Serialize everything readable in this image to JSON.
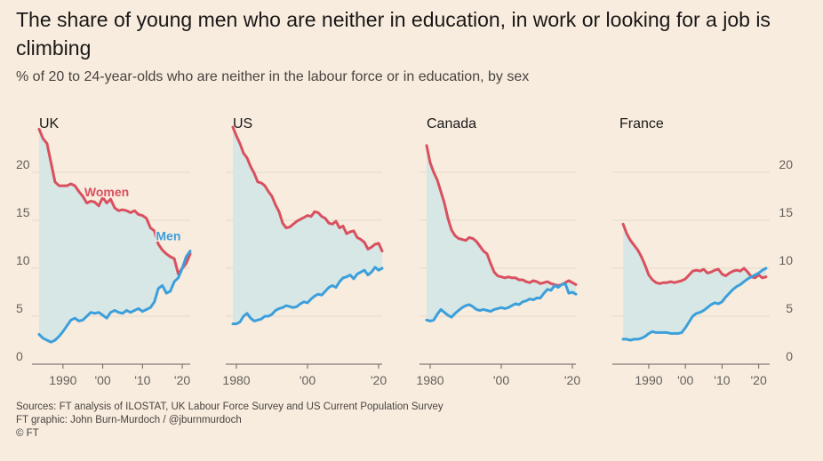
{
  "title": "The share of young men who are neither in education, in work or looking for a job is climbing",
  "subtitle": "% of 20 to 24-year-olds who are neither in the labour force or in education, by sex",
  "footer": {
    "sources": "Sources: FT analysis of ILOSTAT, UK Labour Force Survey and US Current Population Survey",
    "graphic": "FT graphic: John Burn-Murdoch / @jburnmurdoch",
    "copyright": "© FT"
  },
  "colors": {
    "background": "#f7ecde",
    "women": "#d9505e",
    "men": "#3c9fdb",
    "fill": "#d7e7e6",
    "grid": "#e3d7c8",
    "axis": "#66605a"
  },
  "chart_data": [
    {
      "type": "line",
      "title": "UK",
      "xlim": [
        1984,
        2022
      ],
      "ylim": [
        0,
        25
      ],
      "yticks": [
        0,
        5,
        10,
        15,
        20
      ],
      "ytick_labels": [
        "0",
        "5",
        "10",
        "15",
        "20"
      ],
      "ytick_side": "left",
      "xticks": [
        1990,
        2000,
        2010,
        2020
      ],
      "xtick_labels": [
        "1990",
        "'00",
        "'10",
        "'20"
      ],
      "labels": [
        {
          "text": "Women",
          "series": "Women",
          "x": 2001,
          "y": 17.5
        },
        {
          "text": "Men",
          "series": "Men",
          "x": 2016.5,
          "y": 12.9
        }
      ],
      "series": [
        {
          "name": "Women",
          "x": [
            1984,
            1985,
            1986,
            1987,
            1988,
            1989,
            1990,
            1991,
            1992,
            1993,
            1994,
            1995,
            1996,
            1997,
            1998,
            1999,
            2000,
            2001,
            2002,
            2003,
            2004,
            2005,
            2006,
            2007,
            2008,
            2009,
            2010,
            2011,
            2012,
            2013,
            2014,
            2015,
            2016,
            2017,
            2018,
            2019,
            2020,
            2021,
            2022
          ],
          "y": [
            24.5,
            23.5,
            23.0,
            21.0,
            19.0,
            18.6,
            18.6,
            18.6,
            18.8,
            18.6,
            18.0,
            17.5,
            16.8,
            17.0,
            16.9,
            16.5,
            17.4,
            16.8,
            17.2,
            16.3,
            16.0,
            16.1,
            16.0,
            15.8,
            16.0,
            15.6,
            15.5,
            15.2,
            14.2,
            13.9,
            12.5,
            11.9,
            11.5,
            11.2,
            11.0,
            9.4,
            10.0,
            10.5,
            11.5
          ]
        },
        {
          "name": "Men",
          "x": [
            1984,
            1985,
            1986,
            1987,
            1988,
            1989,
            1990,
            1991,
            1992,
            1993,
            1994,
            1995,
            1996,
            1997,
            1998,
            1999,
            2000,
            2001,
            2002,
            2003,
            2004,
            2005,
            2006,
            2007,
            2008,
            2009,
            2010,
            2011,
            2012,
            2013,
            2014,
            2015,
            2016,
            2017,
            2018,
            2019,
            2020,
            2021,
            2022
          ],
          "y": [
            3.1,
            2.7,
            2.5,
            2.3,
            2.5,
            2.9,
            3.4,
            4.0,
            4.6,
            4.8,
            4.5,
            4.6,
            5.0,
            5.4,
            5.3,
            5.4,
            5.1,
            4.8,
            5.4,
            5.6,
            5.4,
            5.3,
            5.6,
            5.4,
            5.6,
            5.8,
            5.5,
            5.7,
            5.9,
            6.5,
            7.9,
            8.2,
            7.4,
            7.6,
            8.6,
            9.0,
            10.0,
            11.2,
            11.8
          ]
        }
      ]
    },
    {
      "type": "line",
      "title": "US",
      "xlim": [
        1979,
        2021
      ],
      "ylim": [
        0,
        25
      ],
      "yticks": [
        0,
        5,
        10,
        15,
        20
      ],
      "ytick_labels": [],
      "ytick_side": "none",
      "xticks": [
        1980,
        2000,
        2020
      ],
      "xtick_labels": [
        "1980",
        "'00",
        "'20"
      ],
      "labels": [],
      "series": [
        {
          "name": "Women",
          "x": [
            1979,
            1980,
            1981,
            1982,
            1983,
            1984,
            1985,
            1986,
            1987,
            1988,
            1989,
            1990,
            1991,
            1992,
            1993,
            1994,
            1995,
            1996,
            1997,
            1998,
            1999,
            2000,
            2001,
            2002,
            2003,
            2004,
            2005,
            2006,
            2007,
            2008,
            2009,
            2010,
            2011,
            2012,
            2013,
            2014,
            2015,
            2016,
            2017,
            2018,
            2019,
            2020,
            2021
          ],
          "y": [
            24.7,
            23.8,
            23.0,
            22.0,
            21.5,
            20.6,
            19.9,
            19.0,
            18.9,
            18.6,
            18.0,
            17.5,
            16.6,
            15.9,
            14.7,
            14.2,
            14.3,
            14.6,
            14.9,
            15.1,
            15.3,
            15.5,
            15.4,
            15.9,
            15.8,
            15.4,
            15.2,
            14.7,
            14.6,
            14.9,
            14.2,
            14.4,
            13.6,
            13.8,
            13.9,
            13.2,
            13.0,
            12.7,
            12.0,
            12.2,
            12.5,
            12.6,
            11.8
          ]
        },
        {
          "name": "Men",
          "x": [
            1979,
            1980,
            1981,
            1982,
            1983,
            1984,
            1985,
            1986,
            1987,
            1988,
            1989,
            1990,
            1991,
            1992,
            1993,
            1994,
            1995,
            1996,
            1997,
            1998,
            1999,
            2000,
            2001,
            2002,
            2003,
            2004,
            2005,
            2006,
            2007,
            2008,
            2009,
            2010,
            2011,
            2012,
            2013,
            2014,
            2015,
            2016,
            2017,
            2018,
            2019,
            2020,
            2021
          ],
          "y": [
            4.2,
            4.2,
            4.4,
            5.0,
            5.3,
            4.8,
            4.5,
            4.6,
            4.7,
            5.0,
            5.0,
            5.2,
            5.6,
            5.8,
            5.9,
            6.1,
            6.0,
            5.9,
            6.0,
            6.3,
            6.5,
            6.4,
            6.8,
            7.1,
            7.3,
            7.2,
            7.6,
            8.0,
            8.2,
            8.0,
            8.6,
            9.0,
            9.1,
            9.3,
            8.9,
            9.4,
            9.6,
            9.8,
            9.3,
            9.6,
            10.1,
            9.8,
            10.0
          ]
        }
      ]
    },
    {
      "type": "line",
      "title": "Canada",
      "xlim": [
        1979,
        2021
      ],
      "ylim": [
        0,
        25
      ],
      "yticks": [
        0,
        5,
        10,
        15,
        20
      ],
      "ytick_labels": [],
      "ytick_side": "none",
      "xticks": [
        1980,
        2000,
        2020
      ],
      "xtick_labels": [
        "1980",
        "'00",
        "'20"
      ],
      "labels": [],
      "series": [
        {
          "name": "Women",
          "x": [
            1979,
            1980,
            1981,
            1982,
            1983,
            1984,
            1985,
            1986,
            1987,
            1988,
            1989,
            1990,
            1991,
            1992,
            1993,
            1994,
            1995,
            1996,
            1997,
            1998,
            1999,
            2000,
            2001,
            2002,
            2003,
            2004,
            2005,
            2006,
            2007,
            2008,
            2009,
            2010,
            2011,
            2012,
            2013,
            2014,
            2015,
            2016,
            2017,
            2018,
            2019,
            2020,
            2021
          ],
          "y": [
            22.8,
            21.0,
            20.0,
            19.2,
            18.0,
            16.8,
            15.2,
            14.0,
            13.4,
            13.1,
            13.0,
            12.9,
            13.2,
            13.1,
            12.8,
            12.3,
            11.8,
            11.5,
            10.5,
            9.6,
            9.2,
            9.1,
            9.0,
            9.1,
            9.0,
            9.0,
            8.8,
            8.8,
            8.6,
            8.5,
            8.7,
            8.6,
            8.4,
            8.5,
            8.6,
            8.4,
            8.3,
            8.2,
            8.3,
            8.5,
            8.7,
            8.5,
            8.3
          ]
        },
        {
          "name": "Men",
          "x": [
            1979,
            1980,
            1981,
            1982,
            1983,
            1984,
            1985,
            1986,
            1987,
            1988,
            1989,
            1990,
            1991,
            1992,
            1993,
            1994,
            1995,
            1996,
            1997,
            1998,
            1999,
            2000,
            2001,
            2002,
            2003,
            2004,
            2005,
            2006,
            2007,
            2008,
            2009,
            2010,
            2011,
            2012,
            2013,
            2014,
            2015,
            2016,
            2017,
            2018,
            2019,
            2020,
            2021
          ],
          "y": [
            4.6,
            4.5,
            4.6,
            5.2,
            5.7,
            5.4,
            5.1,
            4.9,
            5.3,
            5.6,
            5.9,
            6.1,
            6.2,
            6.0,
            5.7,
            5.6,
            5.7,
            5.6,
            5.5,
            5.7,
            5.8,
            5.9,
            5.8,
            5.9,
            6.1,
            6.3,
            6.2,
            6.5,
            6.6,
            6.8,
            6.7,
            6.9,
            6.9,
            7.4,
            7.8,
            7.7,
            8.2,
            8.0,
            8.3,
            8.4,
            7.4,
            7.5,
            7.3
          ]
        }
      ]
    },
    {
      "type": "line",
      "title": "France",
      "xlim": [
        1982,
        2023
      ],
      "ylim": [
        0,
        25
      ],
      "yticks": [
        0,
        5,
        10,
        15,
        20
      ],
      "ytick_labels": [
        "0",
        "5",
        "10",
        "15",
        "20"
      ],
      "ytick_side": "right",
      "xticks": [
        1990,
        2000,
        2010,
        2020
      ],
      "xtick_labels": [
        "1990",
        "'00",
        "'10",
        "'20"
      ],
      "labels": [],
      "series": [
        {
          "name": "Women",
          "x": [
            1983,
            1984,
            1985,
            1986,
            1987,
            1988,
            1989,
            1990,
            1991,
            1992,
            1993,
            1994,
            1995,
            1996,
            1997,
            1998,
            1999,
            2000,
            2001,
            2002,
            2003,
            2004,
            2005,
            2006,
            2007,
            2008,
            2009,
            2010,
            2011,
            2012,
            2013,
            2014,
            2015,
            2016,
            2017,
            2018,
            2019,
            2020,
            2021,
            2022
          ],
          "y": [
            14.6,
            13.6,
            12.9,
            12.4,
            11.9,
            11.2,
            10.3,
            9.3,
            8.8,
            8.5,
            8.4,
            8.5,
            8.5,
            8.6,
            8.5,
            8.6,
            8.7,
            8.9,
            9.3,
            9.7,
            9.8,
            9.7,
            9.9,
            9.5,
            9.6,
            9.8,
            9.9,
            9.4,
            9.2,
            9.5,
            9.7,
            9.8,
            9.7,
            10.0,
            9.6,
            9.1,
            9.0,
            9.3,
            9.0,
            9.1
          ]
        },
        {
          "name": "Men",
          "x": [
            1983,
            1984,
            1985,
            1986,
            1987,
            1988,
            1989,
            1990,
            1991,
            1992,
            1993,
            1994,
            1995,
            1996,
            1997,
            1998,
            1999,
            2000,
            2001,
            2002,
            2003,
            2004,
            2005,
            2006,
            2007,
            2008,
            2009,
            2010,
            2011,
            2012,
            2013,
            2014,
            2015,
            2016,
            2017,
            2018,
            2019,
            2020,
            2021,
            2022
          ],
          "y": [
            2.6,
            2.6,
            2.5,
            2.6,
            2.6,
            2.7,
            2.9,
            3.2,
            3.4,
            3.3,
            3.3,
            3.3,
            3.3,
            3.2,
            3.2,
            3.2,
            3.3,
            3.8,
            4.4,
            5.0,
            5.3,
            5.4,
            5.6,
            5.9,
            6.2,
            6.4,
            6.3,
            6.5,
            7.0,
            7.4,
            7.8,
            8.1,
            8.3,
            8.6,
            8.9,
            9.1,
            9.3,
            9.5,
            9.8,
            10.0
          ]
        }
      ]
    }
  ]
}
